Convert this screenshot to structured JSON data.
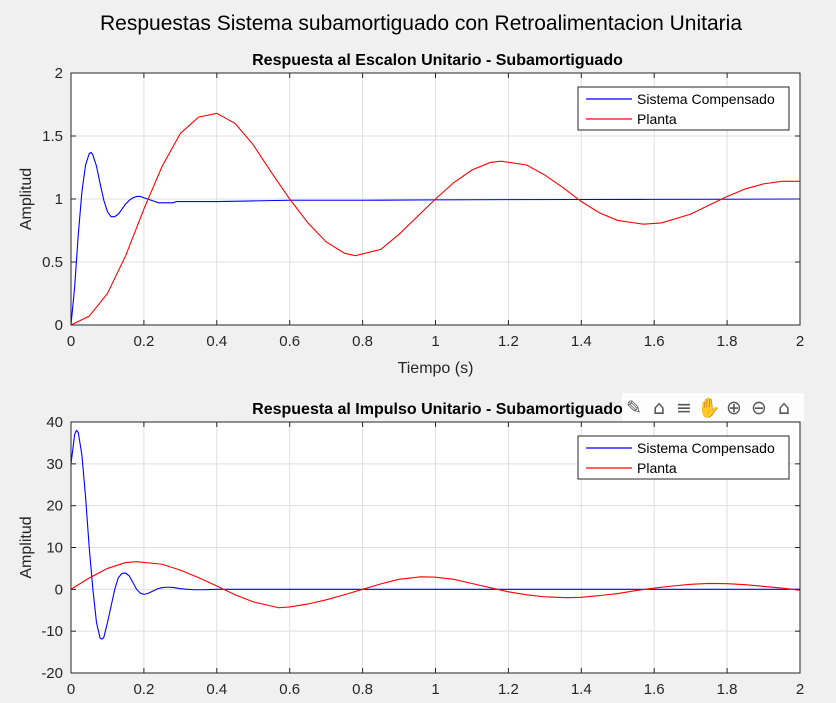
{
  "figure": {
    "suptitle": "Respuestas Sistema subamortiguado con Retroalimentacion Unitaria",
    "toolbar": [
      {
        "name": "data-tips-icon",
        "glyph": "✎"
      },
      {
        "name": "brush-icon",
        "glyph": "⌂"
      },
      {
        "name": "linked-plot-icon",
        "glyph": "≡"
      },
      {
        "name": "pan-hand-icon",
        "glyph": "✋"
      },
      {
        "name": "zoom-in-icon",
        "glyph": "⊕"
      },
      {
        "name": "zoom-out-icon",
        "glyph": "⊖"
      },
      {
        "name": "home-icon",
        "glyph": "⌂"
      }
    ],
    "colors": {
      "background": "#f0f0f0",
      "axes_bg": "#ffffff",
      "grid": "#dfdfdf",
      "blue": "#0000ff",
      "red": "#ff0000",
      "text": "#262626"
    }
  },
  "chart_data": [
    {
      "type": "line",
      "title": "Respuesta al Escalon Unitario - Subamortiguado",
      "xlabel": "Tiempo (s)",
      "ylabel": "Amplitud",
      "xlim": [
        0,
        2
      ],
      "ylim": [
        0,
        2
      ],
      "xticks": [
        "0",
        "0.2",
        "0.4",
        "0.6",
        "0.8",
        "1",
        "1.2",
        "1.4",
        "1.6",
        "1.8",
        "2"
      ],
      "yticks": [
        "0",
        "0.5",
        "1",
        "1.5",
        "2"
      ],
      "grid": true,
      "legend": "top-right",
      "series": [
        {
          "name": "Sistema Compensado",
          "color": "#0000ff",
          "x": [
            0,
            0.01,
            0.02,
            0.03,
            0.04,
            0.05,
            0.055,
            0.06,
            0.07,
            0.08,
            0.09,
            0.1,
            0.11,
            0.12,
            0.13,
            0.14,
            0.15,
            0.16,
            0.17,
            0.18,
            0.19,
            0.2,
            0.21,
            0.22,
            0.23,
            0.24,
            0.25,
            0.26,
            0.27,
            0.28,
            0.29,
            0.3,
            0.32,
            0.34,
            0.36,
            0.38,
            0.4,
            0.5,
            0.6,
            0.8,
            1.0,
            1.2,
            1.4,
            1.6,
            1.8,
            2.0
          ],
          "y": [
            0,
            0.3,
            0.72,
            1.06,
            1.27,
            1.36,
            1.37,
            1.35,
            1.26,
            1.12,
            0.99,
            0.9,
            0.86,
            0.86,
            0.88,
            0.92,
            0.96,
            0.99,
            1.01,
            1.02,
            1.02,
            1.01,
            1.0,
            0.99,
            0.98,
            0.97,
            0.97,
            0.97,
            0.97,
            0.97,
            0.98,
            0.98,
            0.98,
            0.98,
            0.98,
            0.98,
            0.98,
            0.985,
            0.99,
            0.99,
            0.993,
            0.995,
            0.996,
            0.997,
            0.998,
            1.0
          ]
        },
        {
          "name": "Planta",
          "color": "#ff0000",
          "x": [
            0,
            0.05,
            0.1,
            0.15,
            0.2,
            0.25,
            0.3,
            0.35,
            0.4,
            0.45,
            0.5,
            0.55,
            0.6,
            0.65,
            0.7,
            0.75,
            0.78,
            0.85,
            0.9,
            0.95,
            1.0,
            1.05,
            1.1,
            1.15,
            1.18,
            1.25,
            1.3,
            1.35,
            1.4,
            1.45,
            1.5,
            1.57,
            1.62,
            1.7,
            1.75,
            1.8,
            1.85,
            1.9,
            1.95,
            2.0
          ],
          "y": [
            0,
            0.07,
            0.25,
            0.55,
            0.92,
            1.26,
            1.52,
            1.65,
            1.68,
            1.6,
            1.43,
            1.21,
            1.0,
            0.81,
            0.66,
            0.57,
            0.55,
            0.6,
            0.72,
            0.86,
            1.0,
            1.13,
            1.23,
            1.29,
            1.3,
            1.27,
            1.19,
            1.09,
            0.98,
            0.89,
            0.83,
            0.8,
            0.81,
            0.88,
            0.95,
            1.02,
            1.08,
            1.12,
            1.14,
            1.14
          ]
        }
      ]
    },
    {
      "type": "line",
      "title": "Respuesta al Impulso Unitario  - Subamortiguado",
      "xlabel": "",
      "ylabel": "Amplitud",
      "xlim": [
        0,
        2
      ],
      "ylim": [
        -20,
        40
      ],
      "xticks": [
        "0",
        "0.2",
        "0.4",
        "0.6",
        "0.8",
        "1",
        "1.2",
        "1.4",
        "1.6",
        "1.8",
        "2"
      ],
      "yticks": [
        "-20",
        "-10",
        "0",
        "10",
        "20",
        "30",
        "40"
      ],
      "grid": true,
      "legend": "top-right",
      "series": [
        {
          "name": "Sistema Compensado",
          "color": "#0000ff",
          "x": [
            0,
            0.01,
            0.015,
            0.02,
            0.03,
            0.04,
            0.05,
            0.06,
            0.07,
            0.08,
            0.085,
            0.09,
            0.1,
            0.11,
            0.12,
            0.13,
            0.14,
            0.15,
            0.16,
            0.17,
            0.18,
            0.19,
            0.2,
            0.21,
            0.22,
            0.23,
            0.24,
            0.25,
            0.26,
            0.27,
            0.28,
            0.29,
            0.3,
            0.32,
            0.34,
            0.36,
            0.38,
            0.4,
            0.5,
            1.0,
            2.0
          ],
          "y": [
            30,
            37,
            38,
            37.5,
            32,
            22,
            10,
            0,
            -8,
            -11.7,
            -11.9,
            -11.5,
            -8,
            -4,
            0,
            2.8,
            3.8,
            3.9,
            3.2,
            1.6,
            0,
            -0.9,
            -1.2,
            -1.0,
            -0.6,
            -0.2,
            0.2,
            0.4,
            0.5,
            0.5,
            0.45,
            0.3,
            0.15,
            0,
            -0.1,
            -0.1,
            -0.05,
            0,
            0,
            0,
            0
          ]
        },
        {
          "name": "Planta",
          "color": "#ff0000",
          "x": [
            0,
            0.05,
            0.1,
            0.15,
            0.18,
            0.25,
            0.3,
            0.35,
            0.4,
            0.45,
            0.5,
            0.57,
            0.6,
            0.65,
            0.7,
            0.75,
            0.8,
            0.85,
            0.9,
            0.96,
            1.0,
            1.05,
            1.1,
            1.15,
            1.2,
            1.25,
            1.3,
            1.36,
            1.4,
            1.45,
            1.5,
            1.55,
            1.6,
            1.65,
            1.7,
            1.75,
            1.8,
            1.85,
            1.9,
            1.95,
            2.0
          ],
          "y": [
            0,
            2.7,
            5.0,
            6.4,
            6.6,
            6.0,
            4.6,
            2.8,
            0.8,
            -1.3,
            -3.0,
            -4.4,
            -4.2,
            -3.5,
            -2.5,
            -1.3,
            0,
            1.3,
            2.4,
            3.0,
            2.9,
            2.4,
            1.4,
            0.4,
            -0.6,
            -1.3,
            -1.8,
            -2.0,
            -1.9,
            -1.5,
            -1.0,
            -0.3,
            0.3,
            0.8,
            1.2,
            1.4,
            1.35,
            1.1,
            0.7,
            0.3,
            -0.2
          ]
        }
      ]
    }
  ]
}
